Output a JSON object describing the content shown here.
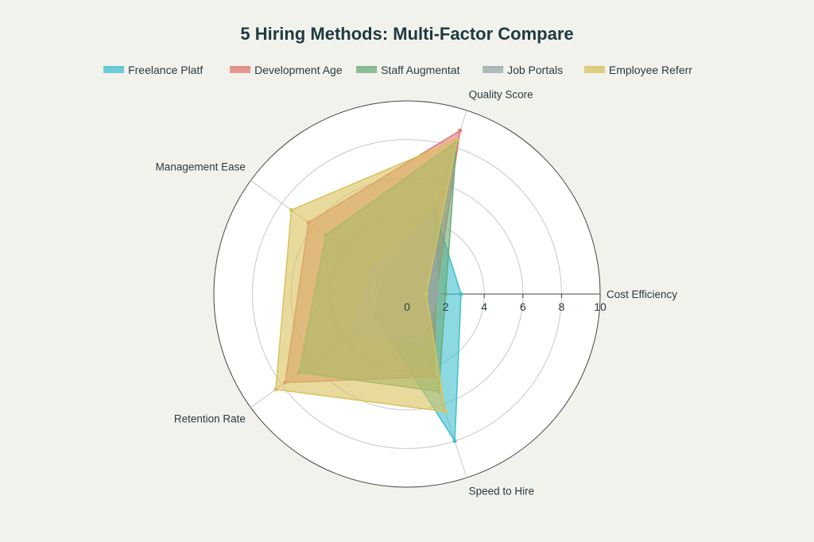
{
  "chart_data": {
    "type": "radar",
    "title": "5 Hiring Methods: Multi-Factor Compare",
    "axes": [
      "Cost Efficiency",
      "Quality Score",
      "Management Ease",
      "Retention Rate",
      "Speed to Hire"
    ],
    "radial_range": [
      0,
      10
    ],
    "radial_ticks": [
      "0",
      "2",
      "4",
      "6",
      "8",
      "10"
    ],
    "grid": true,
    "legend_position": "top",
    "series": [
      {
        "name": "Freelance Platf",
        "color": "#3fbfcf",
        "values": [
          2.8,
          4.6,
          1.5,
          2.0,
          8.0
        ]
      },
      {
        "name": "Development Age",
        "color": "#e07a74",
        "values": [
          1.5,
          8.9,
          6.3,
          7.8,
          4.5
        ]
      },
      {
        "name": "Staff Augmentat",
        "color": "#6aab7b",
        "values": [
          2.0,
          8.3,
          5.2,
          6.9,
          5.3
        ]
      },
      {
        "name": "Job Portals",
        "color": "#97a8ab",
        "values": [
          1.6,
          4.3,
          2.2,
          3.5,
          2.6
        ]
      },
      {
        "name": "Employee Referr",
        "color": "#d8c25c",
        "values": [
          1.0,
          8.4,
          7.4,
          8.4,
          6.4
        ]
      }
    ]
  }
}
